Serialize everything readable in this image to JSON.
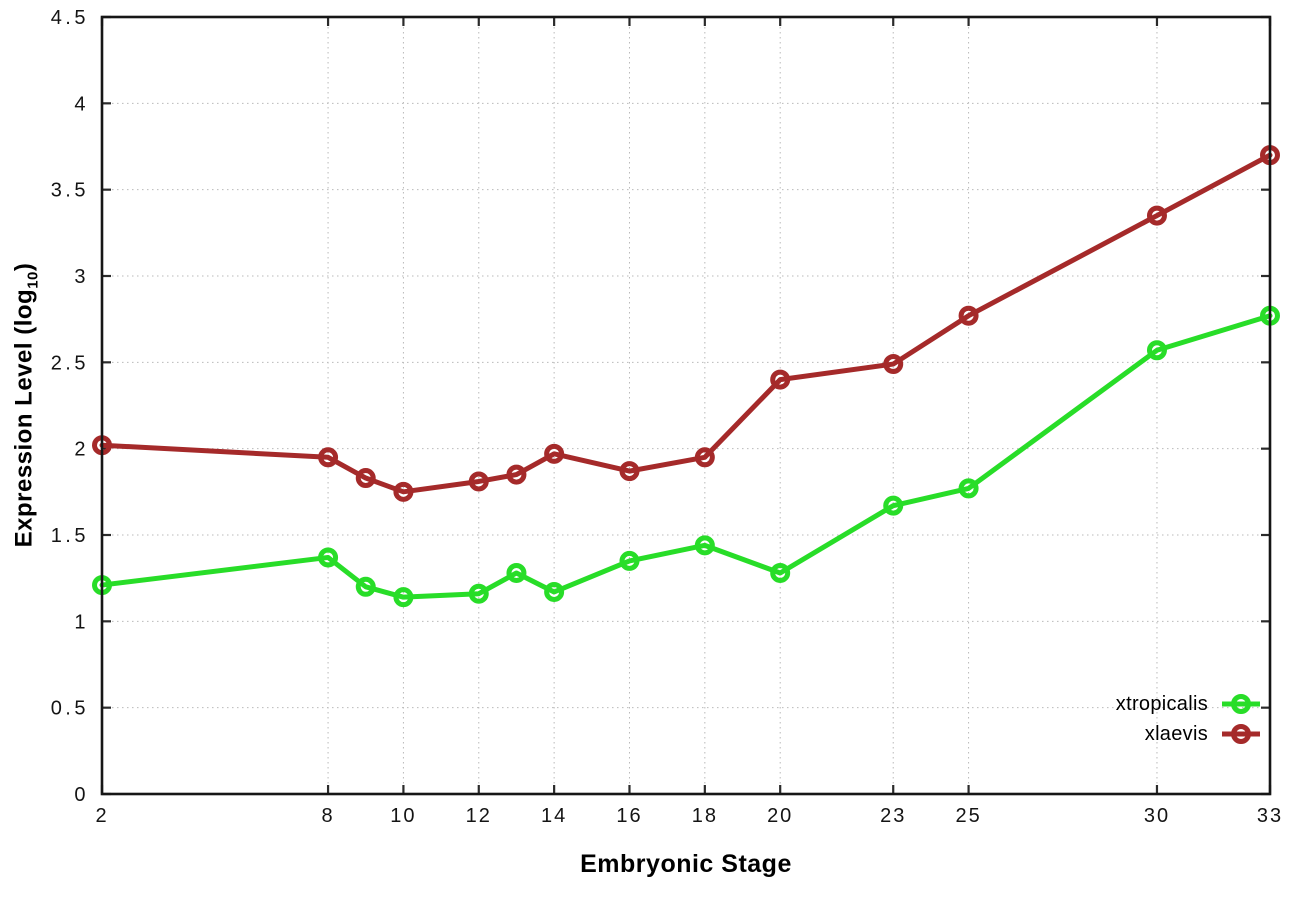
{
  "figure": {
    "xlabel": "Embryonic Stage",
    "ylabel_main": "Expression Level (log",
    "ylabel_sub": "10",
    "ylabel_close": ")",
    "background": "#ffffff",
    "grid_color": "#b9b9b9",
    "border_color": "#161616"
  },
  "chart_data": {
    "type": "line",
    "title": "",
    "xlabel": "Embryonic Stage",
    "ylabel": "Expression Level (log10)",
    "x": [
      2,
      8,
      9,
      10,
      12,
      13,
      14,
      16,
      18,
      20,
      23,
      25,
      30,
      33
    ],
    "series": [
      {
        "name": "xtropicalis",
        "color": "#28dd28",
        "values": [
          1.21,
          1.37,
          1.2,
          1.14,
          1.16,
          1.28,
          1.17,
          1.35,
          1.44,
          1.28,
          1.67,
          1.77,
          2.57,
          2.77
        ]
      },
      {
        "name": "xlaevis",
        "color": "#a52a2a",
        "values": [
          2.02,
          1.95,
          1.83,
          1.75,
          1.81,
          1.85,
          1.97,
          1.87,
          1.95,
          2.4,
          2.49,
          2.77,
          3.35,
          3.7
        ]
      }
    ],
    "xticks": [
      2,
      8,
      10,
      12,
      14,
      16,
      18,
      20,
      23,
      25,
      30,
      33
    ],
    "xtick_labels": [
      "2",
      "8",
      "10",
      "12",
      "14",
      "16",
      "18",
      "20",
      "23",
      "25",
      "30",
      "33"
    ],
    "yticks": [
      0,
      0.5,
      1,
      1.5,
      2,
      2.5,
      3,
      3.5,
      4,
      4.5
    ],
    "ytick_labels": [
      "0",
      "0.5",
      "1",
      "1.5",
      "2",
      "2.5",
      "3",
      "3.5",
      "4",
      "4.5"
    ],
    "xlim": [
      2,
      33
    ],
    "ylim": [
      0,
      4.5
    ],
    "grid": true,
    "legend_position": "bottom-right",
    "marker": "open-circle"
  }
}
